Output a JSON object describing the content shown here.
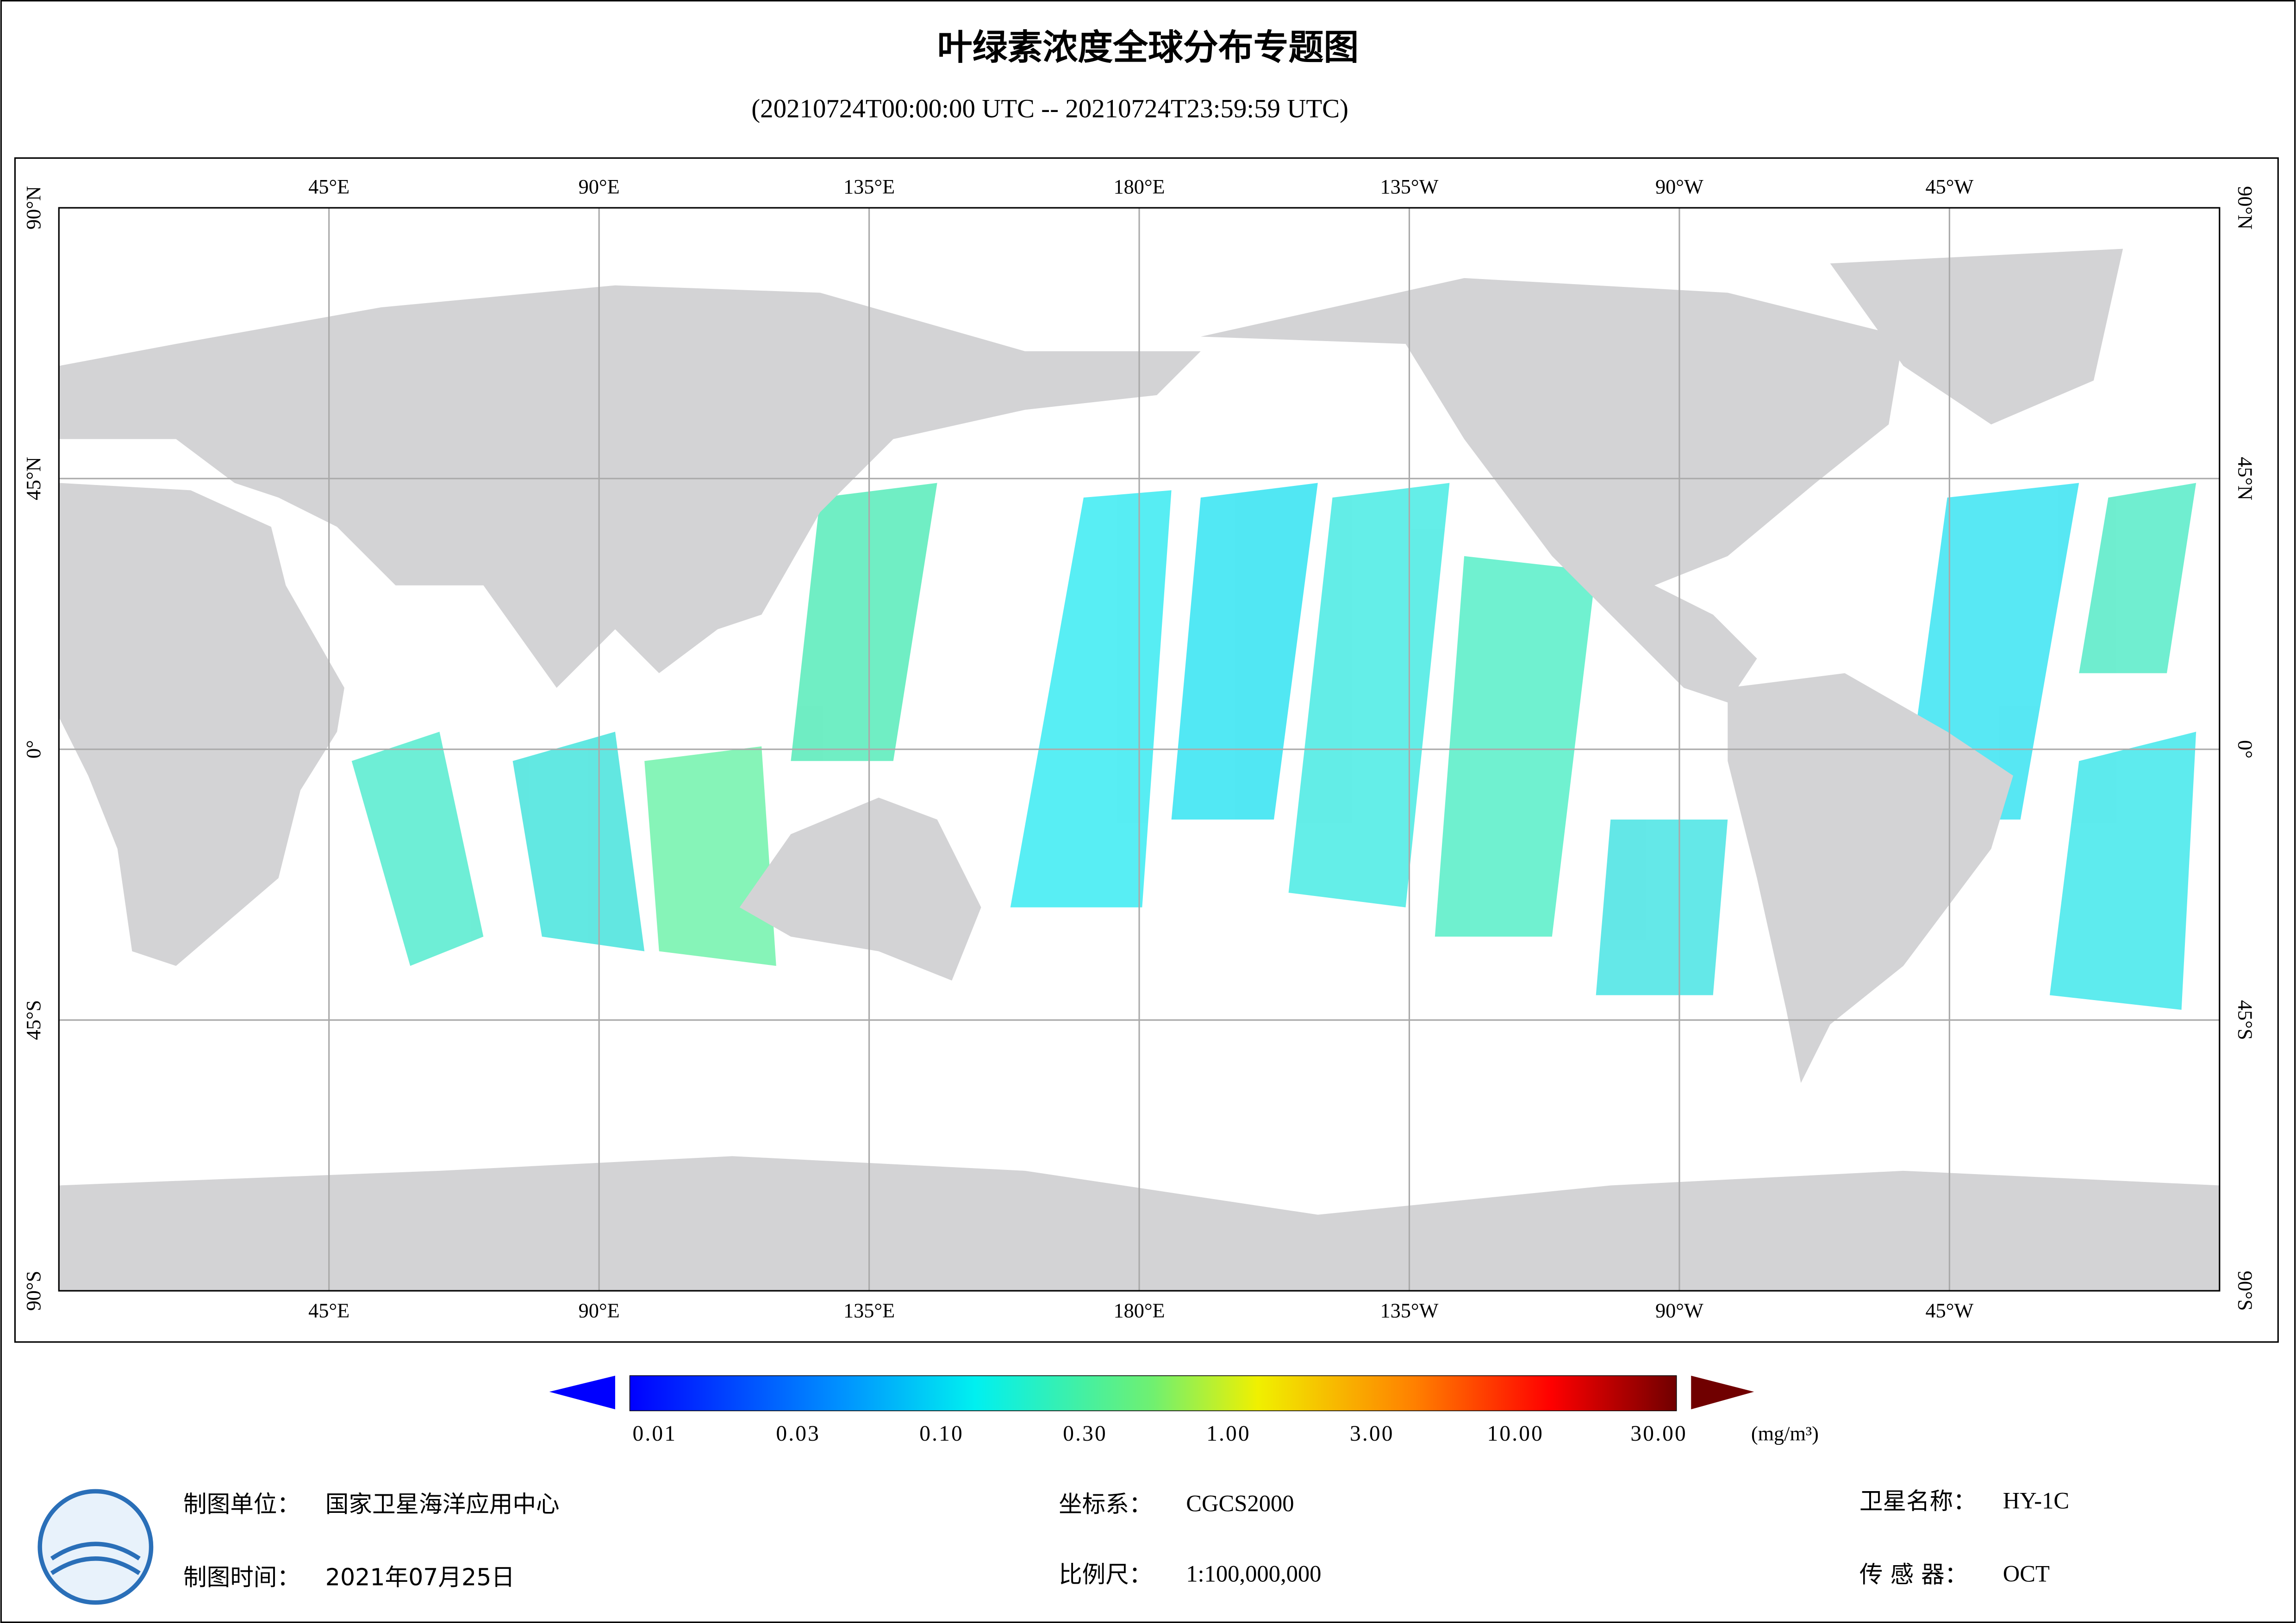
{
  "header": {
    "title": "叶绿素浓度全球分布专题图",
    "subtitle": "(20210724T00:00:00 UTC -- 20210724T23:59:59 UTC)"
  },
  "map": {
    "lon_labels": [
      "45°E",
      "90°E",
      "135°E",
      "180°E",
      "135°W",
      "90°W",
      "45°W"
    ],
    "lat_labels": [
      "90°N",
      "45°N",
      "0°",
      "45°S",
      "90°S"
    ]
  },
  "colorbar": {
    "labels": [
      "0.01",
      "0.03",
      "0.10",
      "0.30",
      "1.00",
      "3.00",
      "10.00",
      "30.00"
    ],
    "unit": "(mg/m³)"
  },
  "footer": {
    "unit_label": "制图单位：",
    "unit_value": "国家卫星海洋应用中心",
    "date_label": "制图时间：",
    "date_value": "2021年07月25日",
    "crs_label": "坐标系：",
    "crs_value": "CGCS2000",
    "scale_label": "比例尺：",
    "scale_value": "1:100,000,000",
    "satellite_label": "卫星名称：",
    "satellite_value": "HY-1C",
    "sensor_label": "传 感 器：",
    "sensor_value": "OCT"
  }
}
